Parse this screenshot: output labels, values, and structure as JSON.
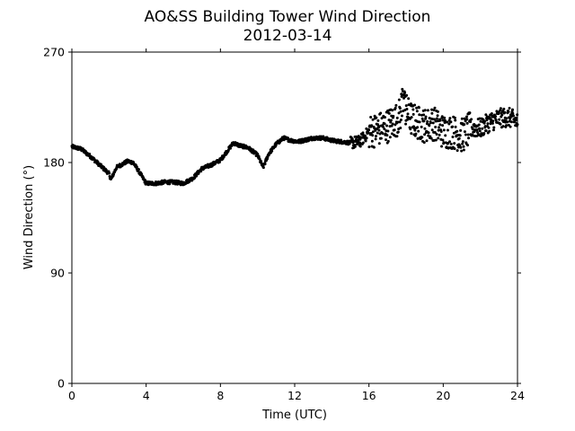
{
  "chart_data": {
    "type": "scatter",
    "title": "AO&SS Building Tower Wind Direction",
    "subtitle": "2012-03-14",
    "xlabel": "Time (UTC)",
    "ylabel": "Wind Direction (°)",
    "xlim": [
      0,
      24
    ],
    "ylim": [
      0,
      270
    ],
    "xticks": [
      0,
      4,
      8,
      12,
      16,
      20,
      24
    ],
    "yticks": [
      0,
      90,
      180,
      270
    ],
    "marker_color": "#000000",
    "grid": false,
    "series": [
      {
        "points": [
          [
            0.0,
            193
          ],
          [
            0.5,
            191
          ],
          [
            1.0,
            185
          ],
          [
            1.5,
            178
          ],
          [
            2.0,
            171
          ],
          [
            2.1,
            166
          ],
          [
            2.4,
            176
          ],
          [
            3.0,
            181
          ],
          [
            3.3,
            180
          ],
          [
            3.6,
            173
          ],
          [
            4.0,
            163
          ],
          [
            4.5,
            163
          ],
          [
            5.0,
            164
          ],
          [
            5.5,
            164
          ],
          [
            6.0,
            163
          ],
          [
            6.5,
            167
          ],
          [
            7.0,
            175
          ],
          [
            7.5,
            178
          ],
          [
            8.0,
            182
          ],
          [
            8.5,
            192
          ],
          [
            8.7,
            196
          ],
          [
            9.0,
            194
          ],
          [
            9.5,
            192
          ],
          [
            10.0,
            186
          ],
          [
            10.3,
            176
          ],
          [
            10.6,
            187
          ],
          [
            11.0,
            195
          ],
          [
            11.4,
            200
          ],
          [
            11.8,
            198
          ],
          [
            12.2,
            197
          ],
          [
            13.0,
            200
          ],
          [
            13.5,
            200
          ],
          [
            14.0,
            198
          ],
          [
            14.5,
            197
          ],
          [
            15.0,
            196
          ],
          [
            15.5,
            197
          ],
          [
            16.0,
            205
          ],
          [
            16.5,
            207
          ],
          [
            17.0,
            210
          ],
          [
            17.5,
            215
          ],
          [
            17.9,
            225
          ],
          [
            18.3,
            215
          ],
          [
            19.0,
            210
          ],
          [
            19.5,
            212
          ],
          [
            20.0,
            205
          ],
          [
            20.5,
            205
          ],
          [
            21.0,
            202
          ],
          [
            21.5,
            208
          ],
          [
            22.0,
            208
          ],
          [
            22.5,
            213
          ],
          [
            23.0,
            216
          ],
          [
            23.5,
            217
          ],
          [
            24.0,
            213
          ]
        ]
      }
    ]
  }
}
